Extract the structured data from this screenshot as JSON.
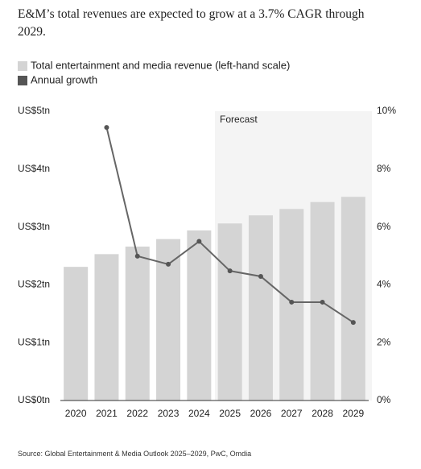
{
  "chart_data": {
    "type": "bar-line",
    "title_lines": [
      "E&M’s total revenues are expected to grow at a 3.7% CAGR through",
      "2029."
    ],
    "categories": [
      "2020",
      "2021",
      "2022",
      "2023",
      "2024",
      "2025",
      "2026",
      "2027",
      "2028",
      "2029"
    ],
    "series": [
      {
        "name": "Total entertainment and media revenue (left-hand scale)",
        "color": "#d4d4d4",
        "type": "bar",
        "values": [
          2.31,
          2.53,
          2.66,
          2.79,
          2.94,
          3.06,
          3.2,
          3.31,
          3.43,
          3.52
        ]
      },
      {
        "name": "Annual growth",
        "color": "#666666",
        "type": "line",
        "axis": "y2",
        "values": [
          null,
          9.44,
          4.99,
          4.71,
          5.5,
          4.48,
          4.29,
          3.4,
          3.4,
          2.7
        ]
      }
    ],
    "ylim": [
      0,
      5
    ],
    "yticks": [
      {
        "value": 0,
        "label": "US$0tn"
      },
      {
        "value": 1,
        "label": "US$1tn"
      },
      {
        "value": 2,
        "label": "US$2tn"
      },
      {
        "value": 3,
        "label": "US$3tn"
      },
      {
        "value": 4,
        "label": "US$4tn"
      },
      {
        "value": 5,
        "label": "US$5tn"
      }
    ],
    "y2lim": [
      0,
      10
    ],
    "y2ticks": [
      {
        "value": 0,
        "label": "0%"
      },
      {
        "value": 2,
        "label": "2%"
      },
      {
        "value": 4,
        "label": "4%"
      },
      {
        "value": 6,
        "label": "6%"
      },
      {
        "value": 8,
        "label": "8%"
      },
      {
        "value": 10,
        "label": "10%"
      }
    ],
    "annotation": "Forecast",
    "source": "Source: Global Entertainment & Media Outlook 2025–2029, PwC, Omdia",
    "grid": false
  }
}
